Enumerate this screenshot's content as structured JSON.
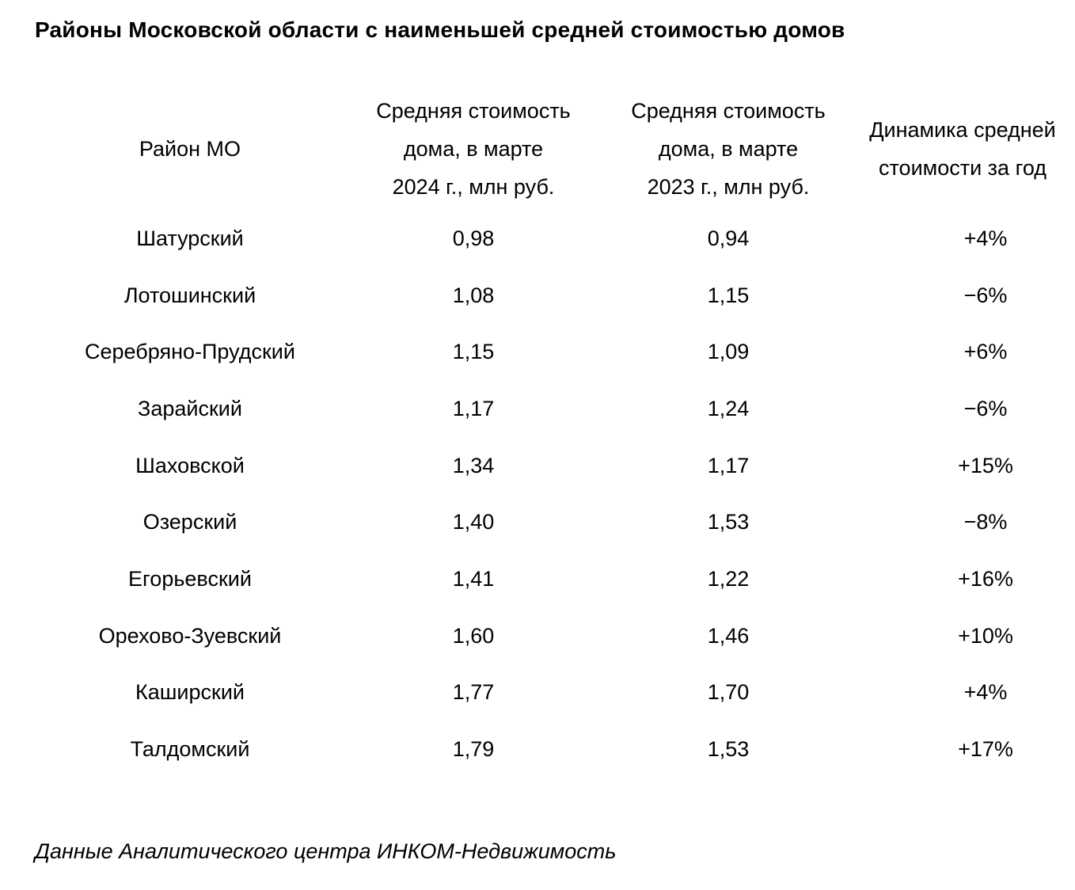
{
  "page": {
    "title": "Районы Московской области с наименьшей средней стоимостью домов",
    "source_note": "Данные Аналитического центра ИНКОМ-Недвижимость"
  },
  "table": {
    "headers": {
      "district": "Район МО",
      "price_2024": "Средняя стоимость\nдома, в марте\n2024 г., млн руб.",
      "price_2023": "Средняя стоимость\nдома, в марте\n2023 г., млн руб.",
      "change": "Динамика средней\nстоимости за год"
    },
    "rows": [
      {
        "district": "Шатурский",
        "price_2024": "0,98",
        "price_2023": "0,94",
        "change": "+4%"
      },
      {
        "district": "Лотошинский",
        "price_2024": "1,08",
        "price_2023": "1,15",
        "change": "−6%"
      },
      {
        "district": "Серебряно-Прудский",
        "price_2024": "1,15",
        "price_2023": "1,09",
        "change": "+6%"
      },
      {
        "district": "Зарайский",
        "price_2024": "1,17",
        "price_2023": "1,24",
        "change": "−6%"
      },
      {
        "district": "Шаховской",
        "price_2024": "1,34",
        "price_2023": "1,17",
        "change": "+15%"
      },
      {
        "district": "Озерский",
        "price_2024": "1,40",
        "price_2023": "1,53",
        "change": "−8%"
      },
      {
        "district": "Егорьевский",
        "price_2024": "1,41",
        "price_2023": "1,22",
        "change": "+16%"
      },
      {
        "district": "Орехово-Зуевский",
        "price_2024": "1,60",
        "price_2023": "1,46",
        "change": "+10%"
      },
      {
        "district": "Каширский",
        "price_2024": "1,77",
        "price_2023": "1,70",
        "change": "+4%"
      },
      {
        "district": "Талдомский",
        "price_2024": "1,79",
        "price_2023": "1,53",
        "change": "+17%"
      }
    ]
  },
  "chart_data": {
    "type": "table",
    "title": "Районы Московской области с наименьшей средней стоимостью домов",
    "columns": [
      "Район МО",
      "Средняя стоимость дома, в марте 2024 г., млн руб.",
      "Средняя стоимость дома, в марте 2023 г., млн руб.",
      "Динамика средней стоимости за год"
    ],
    "categories": [
      "Шатурский",
      "Лотошинский",
      "Серебряно-Прудский",
      "Зарайский",
      "Шаховской",
      "Озерский",
      "Егорьевский",
      "Орехово-Зуевский",
      "Каширский",
      "Талдомский"
    ],
    "series": [
      {
        "name": "Средняя стоимость дома, в марте 2024 г., млн руб.",
        "values": [
          0.98,
          1.08,
          1.15,
          1.17,
          1.34,
          1.4,
          1.41,
          1.6,
          1.77,
          1.79
        ]
      },
      {
        "name": "Средняя стоимость дома, в марте 2023 г., млн руб.",
        "values": [
          0.94,
          1.15,
          1.09,
          1.24,
          1.17,
          1.53,
          1.22,
          1.46,
          1.7,
          1.53
        ]
      },
      {
        "name": "Динамика средней стоимости за год, %",
        "values": [
          4,
          -6,
          6,
          -6,
          15,
          -8,
          16,
          10,
          4,
          17
        ]
      }
    ],
    "annotations": [
      "Данные Аналитического центра ИНКОМ-Недвижимость"
    ],
    "text_color": "#000000",
    "background_color": "#ffffff"
  }
}
